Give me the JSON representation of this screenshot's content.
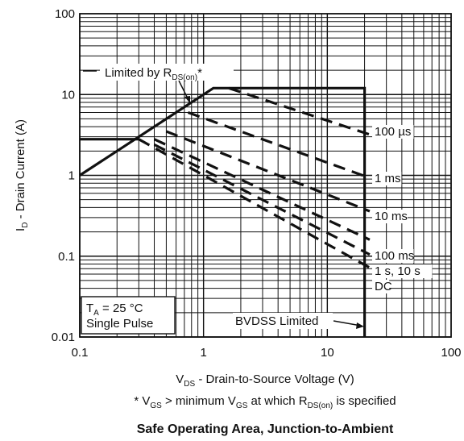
{
  "chart_data": {
    "type": "line",
    "xscale": "log",
    "yscale": "log",
    "xlim": [
      0.1,
      100
    ],
    "ylim": [
      0.01,
      100
    ],
    "grid": true,
    "x_ticks": [
      "0.1",
      "1",
      "10",
      "100"
    ],
    "y_ticks": [
      "0.01",
      "0.1",
      "1",
      "10",
      "100"
    ],
    "xlabel": {
      "main": "V",
      "sub": "DS",
      "rest": " - Drain-to-Source Voltage (V)"
    },
    "ylabel": {
      "main": "I",
      "sub": "D",
      "rest": " - Drain Current (A)"
    },
    "footnote": {
      "a": "* V",
      "a_sub": "GS",
      "b": " > minimum V",
      "b_sub": "GS",
      "c": " at which R",
      "c_sub": "DS(on)",
      "d": " is specified"
    },
    "title": "Safe Operating Area, Junction-to-Ambient",
    "boundary": [
      {
        "x": 0.1,
        "y": 1
      },
      {
        "x": 1.2,
        "y": 12
      },
      {
        "x": 20,
        "y": 12
      },
      {
        "x": 20,
        "y": 0.01
      }
    ],
    "step_line": [
      {
        "x": 0.1,
        "y": 2.8
      },
      {
        "x": 0.3,
        "y": 2.8
      }
    ],
    "series": [
      {
        "name": "100 µs",
        "points": [
          {
            "x": 1.6,
            "y": 12
          },
          {
            "x": 22,
            "y": 3.2
          }
        ]
      },
      {
        "name": "1 ms",
        "points": [
          {
            "x": 0.75,
            "y": 6
          },
          {
            "x": 22,
            "y": 0.93
          }
        ]
      },
      {
        "name": "10 ms",
        "points": [
          {
            "x": 0.5,
            "y": 3.5
          },
          {
            "x": 22,
            "y": 0.36
          }
        ]
      },
      {
        "name": "100 ms",
        "points": [
          {
            "x": 0.4,
            "y": 2.8
          },
          {
            "x": 22,
            "y": 0.16
          }
        ]
      },
      {
        "name": "1 s, 10 s",
        "points": [
          {
            "x": 0.4,
            "y": 2.4
          },
          {
            "x": 22,
            "y": 0.105
          }
        ]
      },
      {
        "name": "DC",
        "points": [
          {
            "x": 0.3,
            "y": 2.8
          },
          {
            "x": 22,
            "y": 0.072
          }
        ]
      }
    ],
    "annotations": {
      "limited_by": {
        "text": "Limited by R",
        "sub": "DS(on)",
        "suffix": "*"
      },
      "ta": {
        "text": "T",
        "sub": "A",
        "suffix": " = 25 °C"
      },
      "single_pulse": "Single Pulse",
      "bvdss": "BVDSS Limited"
    }
  }
}
